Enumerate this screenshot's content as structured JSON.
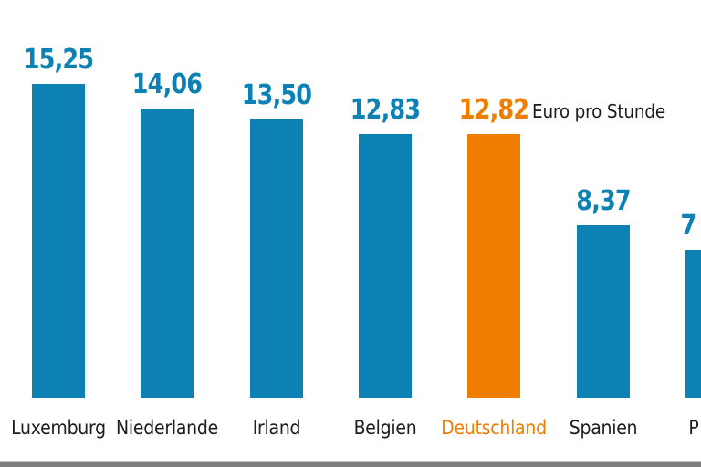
{
  "chart": {
    "unit_label": "Euro pro Stunde",
    "colors": {
      "bar_default": "#0e81b4",
      "bar_highlight": "#ef7d00",
      "value_text_default": "#0e81b4",
      "value_text_highlight": "#ef7d00",
      "country_text_default": "#1c1c1b",
      "country_text_highlight": "#ef7d00",
      "unit_text": "#1c1c1b",
      "bottom_strip": "#7d7d7d",
      "background": "#ffffff"
    },
    "bars": [
      {
        "label": "Luxemburg",
        "value_label": "15,25",
        "value": 15.25,
        "highlight": false,
        "clipped": false
      },
      {
        "label": "Niederlande",
        "value_label": "14,06",
        "value": 14.06,
        "highlight": false,
        "clipped": false
      },
      {
        "label": "Irland",
        "value_label": "13,50",
        "value": 13.5,
        "highlight": false,
        "clipped": false
      },
      {
        "label": "Belgien",
        "value_label": "12,83",
        "value": 12.83,
        "highlight": false,
        "clipped": false
      },
      {
        "label": "Deutschland",
        "value_label": "12,82",
        "value": 12.82,
        "highlight": true,
        "clipped": false
      },
      {
        "label": "Spanien",
        "value_label": "8,37",
        "value": 8.37,
        "highlight": false,
        "clipped": false
      },
      {
        "label": "P",
        "value_label": "7",
        "value": 7.2,
        "highlight": false,
        "clipped": true
      }
    ]
  },
  "chart_data": {
    "type": "bar",
    "title": "",
    "unit": "Euro pro Stunde",
    "categories": [
      "Luxemburg",
      "Niederlande",
      "Irland",
      "Belgien",
      "Deutschland",
      "Spanien",
      "P"
    ],
    "values": [
      15.25,
      14.06,
      13.5,
      12.83,
      12.82,
      8.37,
      7.2
    ],
    "value_labels_visible": [
      "15,25",
      "14,06",
      "13,50",
      "12,83",
      "12,82",
      "8,37",
      "7"
    ],
    "highlighted_category": "Deutschland",
    "ylim": [
      0,
      16
    ],
    "grid": false,
    "axes_visible": false,
    "legend": "none",
    "note": "Seventh bar is cut off at the right image edge; only the digit 7 and the letter P of its labels are visible."
  }
}
